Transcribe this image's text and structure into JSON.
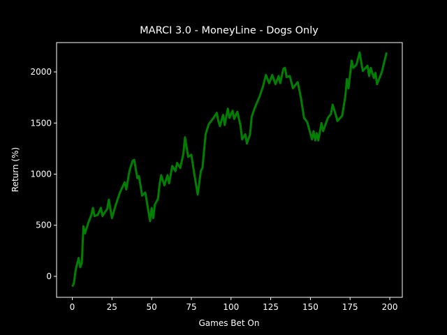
{
  "chart_data": {
    "type": "line",
    "title": "MARCI 3.0 - MoneyLine - Dogs Only",
    "xlabel": "Games Bet On",
    "ylabel": "Return (%)",
    "xlim": [
      -9.9,
      207.9
    ],
    "ylim": [
      -205,
      2287
    ],
    "xticks": [
      0,
      25,
      50,
      75,
      100,
      125,
      150,
      175,
      200
    ],
    "yticks": [
      0,
      500,
      1000,
      1500,
      2000
    ],
    "series": [
      {
        "color": "#008000",
        "x": [
          0,
          1,
          2,
          3,
          4,
          5,
          6,
          7,
          8,
          10,
          12,
          13,
          14,
          16,
          18,
          19,
          22,
          23,
          25,
          27,
          30,
          33,
          34,
          36,
          38,
          39,
          41,
          42,
          44,
          46,
          49,
          50,
          51,
          52,
          54,
          55,
          56,
          58,
          60,
          61,
          63,
          65,
          66,
          68,
          70,
          71,
          73,
          75,
          77,
          79,
          81,
          82,
          84,
          86,
          89,
          91,
          92,
          93,
          95,
          96,
          98,
          99,
          101,
          102,
          104,
          106,
          107,
          109,
          110,
          112,
          113,
          115,
          118,
          120,
          122,
          124,
          126,
          128,
          130,
          131,
          133,
          134,
          135,
          137,
          139,
          141,
          142,
          144,
          146,
          148,
          151,
          152,
          153,
          154,
          155,
          157,
          158,
          161,
          163,
          164,
          166,
          167,
          170,
          172,
          173,
          174,
          176,
          177,
          179,
          181,
          183,
          186,
          187,
          188,
          190,
          191,
          192,
          193,
          195,
          198
        ],
        "values": [
          -100,
          -70,
          50,
          120,
          180,
          90,
          130,
          490,
          420,
          520,
          600,
          670,
          590,
          600,
          670,
          590,
          660,
          750,
          570,
          680,
          820,
          920,
          850,
          1030,
          1130,
          1140,
          960,
          980,
          790,
          820,
          540,
          670,
          570,
          700,
          760,
          900,
          990,
          890,
          990,
          910,
          1080,
          1030,
          1110,
          1060,
          1200,
          1360,
          1170,
          1190,
          990,
          800,
          1030,
          1060,
          1390,
          1490,
          1550,
          1600,
          1520,
          1470,
          1580,
          1480,
          1640,
          1550,
          1620,
          1540,
          1610,
          1470,
          1340,
          1390,
          1300,
          1390,
          1560,
          1650,
          1760,
          1850,
          1970,
          1890,
          1970,
          1880,
          1960,
          1890,
          2030,
          2040,
          1950,
          1960,
          1840,
          1880,
          1900,
          1750,
          1550,
          1510,
          1340,
          1420,
          1330,
          1400,
          1330,
          1500,
          1420,
          1550,
          1590,
          1680,
          1580,
          1520,
          1570,
          1760,
          1930,
          1840,
          2110,
          2040,
          2070,
          2190,
          2010,
          2060,
          1960,
          2040,
          1940,
          1990,
          1880,
          1920,
          2000,
          2190
        ]
      }
    ]
  }
}
